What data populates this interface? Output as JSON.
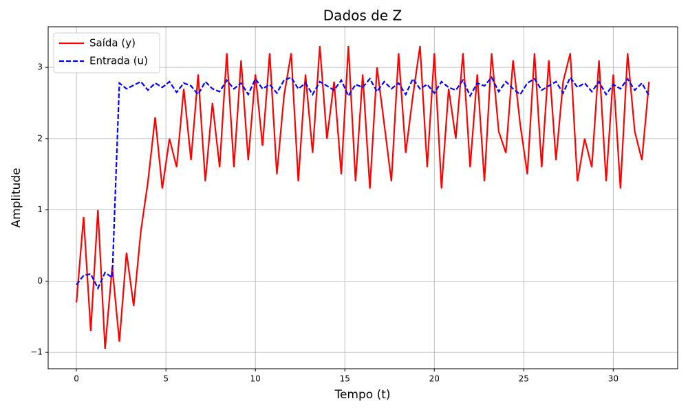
{
  "chart_data": {
    "type": "line",
    "title": "Dados de Z",
    "x_label": "Tempo (t)",
    "y_label": "Amplitude",
    "x": [
      0,
      0.4,
      0.8,
      1.2,
      1.6,
      2,
      2.4,
      2.8,
      3.2,
      3.6,
      4,
      4.4,
      4.8,
      5.2,
      5.6,
      6,
      6.4,
      6.8,
      7.2,
      7.6,
      8,
      8.4,
      8.8,
      9.2,
      9.6,
      10,
      10.4,
      10.8,
      11.2,
      11.6,
      12,
      12.4,
      12.8,
      13.2,
      13.6,
      14,
      14.4,
      14.8,
      15.2,
      15.6,
      16,
      16.4,
      16.8,
      17.2,
      17.6,
      18,
      18.4,
      18.8,
      19.2,
      19.6,
      20,
      20.4,
      20.8,
      21.2,
      21.6,
      22,
      22.4,
      22.8,
      23.2,
      23.6,
      24,
      24.4,
      24.8,
      25.2,
      25.6,
      26,
      26.4,
      26.8,
      27.2,
      27.6,
      28,
      28.4,
      28.8,
      29.2,
      29.6,
      30,
      30.4,
      30.8,
      31.2,
      31.6,
      32
    ],
    "series": [
      {
        "name": "Saída (y)",
        "color": "#ff0000",
        "dash": false,
        "values": [
          -0.3,
          0.9,
          -0.7,
          1.0,
          -0.95,
          0.2,
          -0.85,
          0.4,
          -0.35,
          0.7,
          1.4,
          2.3,
          1.3,
          2.0,
          1.6,
          2.7,
          1.7,
          2.9,
          1.4,
          2.5,
          1.6,
          3.2,
          1.6,
          3.1,
          1.7,
          2.9,
          1.9,
          3.2,
          1.5,
          2.6,
          3.2,
          1.4,
          2.9,
          1.8,
          3.3,
          2.0,
          2.8,
          1.5,
          3.3,
          1.4,
          2.9,
          1.3,
          3.0,
          2.2,
          1.4,
          3.2,
          1.8,
          2.6,
          3.3,
          1.6,
          3.2,
          1.3,
          2.7,
          2.0,
          3.2,
          1.6,
          2.9,
          1.4,
          3.2,
          2.1,
          1.8,
          3.1,
          2.2,
          1.5,
          3.2,
          1.6,
          3.1,
          1.7,
          2.8,
          3.2,
          1.4,
          2.0,
          1.6,
          3.1,
          1.4,
          2.9,
          1.3,
          3.2,
          2.1,
          1.7,
          2.8
        ]
      },
      {
        "name": "Entrada (u)",
        "color": "#0000ff",
        "dash": true,
        "values": [
          -0.05,
          0.08,
          0.1,
          -0.1,
          0.12,
          0.05,
          2.78,
          2.7,
          2.75,
          2.8,
          2.68,
          2.78,
          2.72,
          2.8,
          2.65,
          2.78,
          2.74,
          2.62,
          2.8,
          2.7,
          2.66,
          2.82,
          2.7,
          2.78,
          2.62,
          2.84,
          2.7,
          2.76,
          2.64,
          2.82,
          2.86,
          2.7,
          2.78,
          2.62,
          2.8,
          2.74,
          2.68,
          2.82,
          2.6,
          2.76,
          2.72,
          2.84,
          2.66,
          2.8,
          2.7,
          2.78,
          2.62,
          2.84,
          2.7,
          2.76,
          2.64,
          2.8,
          2.72,
          2.68,
          2.82,
          2.6,
          2.78,
          2.74,
          2.86,
          2.66,
          2.8,
          2.7,
          2.62,
          2.78,
          2.84,
          2.68,
          2.74,
          2.8,
          2.64,
          2.86,
          2.72,
          2.78,
          2.66,
          2.8,
          2.62,
          2.76,
          2.7,
          2.84,
          2.68,
          2.78,
          2.6
        ]
      }
    ],
    "xlim": [
      -1.58,
      33.6
    ],
    "ylim": [
      -1.23,
      3.57
    ],
    "xticks": [
      0,
      5,
      10,
      15,
      20,
      25,
      30
    ],
    "yticks": [
      {
        "value": -1,
        "label": "−1"
      },
      0,
      1,
      2,
      3
    ],
    "grid": true,
    "legend": "upper-left"
  }
}
